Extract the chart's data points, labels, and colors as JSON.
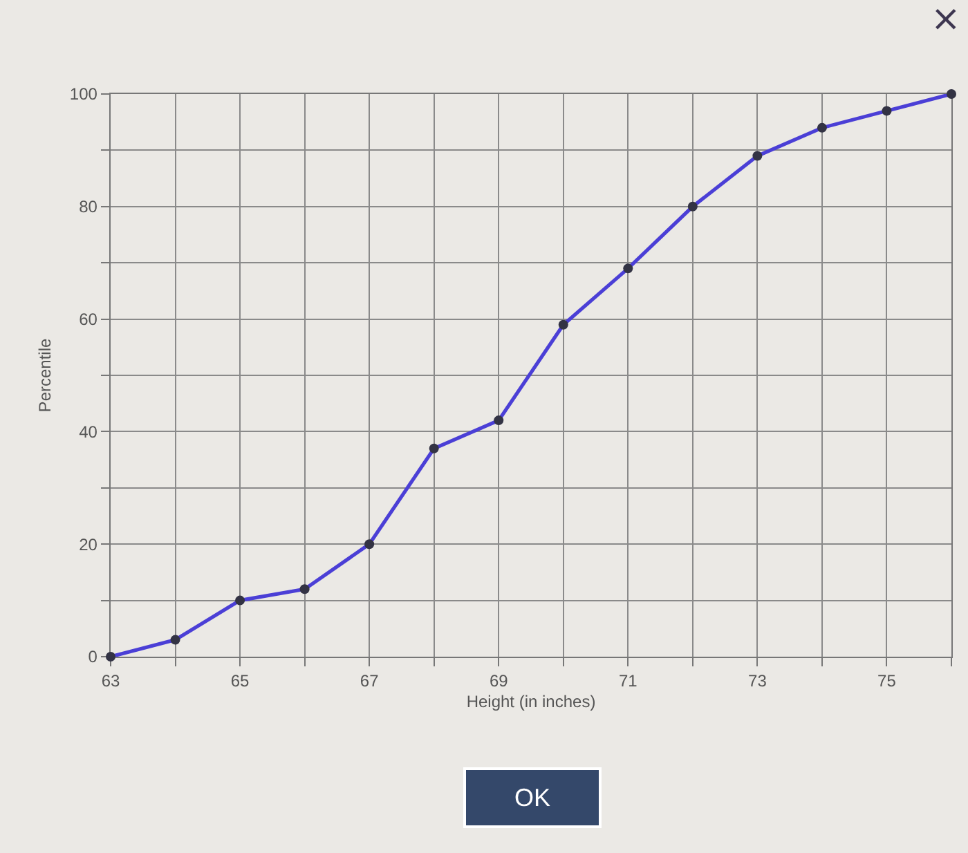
{
  "chart_data": {
    "type": "line",
    "xlabel": "Height (in inches)",
    "ylabel": "Percentile",
    "x": [
      63,
      64,
      65,
      66,
      67,
      68,
      69,
      70,
      71,
      72,
      73,
      74,
      75,
      76
    ],
    "series": [
      {
        "color": "#4b3fd6",
        "values": [
          0,
          3,
          10,
          12,
          20,
          37,
          42,
          59,
          69,
          80,
          89,
          94,
          97,
          100
        ]
      }
    ],
    "xlim": [
      63,
      76
    ],
    "ylim": [
      0,
      100
    ],
    "xticks": [
      63,
      {
        "value": 64,
        "label": null
      },
      65,
      {
        "value": 66,
        "label": null
      },
      67,
      {
        "value": 68,
        "label": null
      },
      69,
      {
        "value": 70,
        "label": null
      },
      71,
      {
        "value": 72,
        "label": null
      },
      73,
      {
        "value": 74,
        "label": null
      },
      75,
      {
        "value": 76,
        "label": null
      }
    ],
    "yticks": [
      0,
      {
        "value": 10,
        "label": null
      },
      20,
      {
        "value": 30,
        "label": null
      },
      40,
      {
        "value": 50,
        "label": null
      },
      60,
      {
        "value": 70,
        "label": null
      },
      80,
      {
        "value": 90,
        "label": null
      },
      100
    ],
    "grid": true,
    "marker": "circle",
    "line_style": "solid",
    "annotations": [
      "OK",
      "×"
    ]
  }
}
